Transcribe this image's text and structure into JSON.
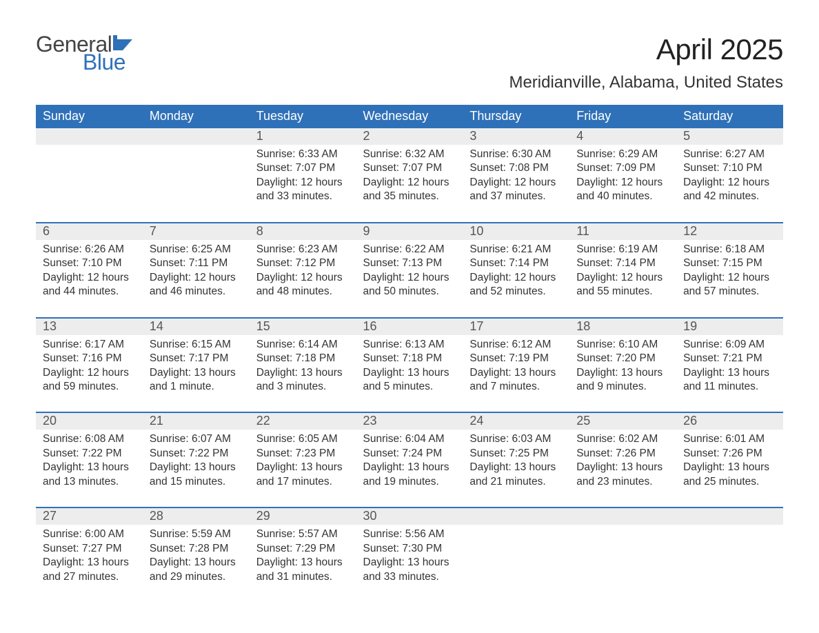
{
  "logo": {
    "text1": "General",
    "text2": "Blue",
    "flag_color": "#2f71b8"
  },
  "title": "April 2025",
  "location": "Meridianville, Alabama, United States",
  "colors": {
    "header_bg": "#2f71b8",
    "header_text": "#ffffff",
    "daynum_bg": "#ededed",
    "row_divider": "#2f71b8",
    "body_text": "#333333"
  },
  "fonts": {
    "title_size_pt": 32,
    "location_size_pt": 18,
    "header_size_pt": 14,
    "daynum_size_pt": 14,
    "body_size_pt": 12
  },
  "day_headers": [
    "Sunday",
    "Monday",
    "Tuesday",
    "Wednesday",
    "Thursday",
    "Friday",
    "Saturday"
  ],
  "weeks": [
    [
      null,
      null,
      {
        "n": "1",
        "sunrise": "6:33 AM",
        "sunset": "7:07 PM",
        "daylight": "12 hours and 33 minutes."
      },
      {
        "n": "2",
        "sunrise": "6:32 AM",
        "sunset": "7:07 PM",
        "daylight": "12 hours and 35 minutes."
      },
      {
        "n": "3",
        "sunrise": "6:30 AM",
        "sunset": "7:08 PM",
        "daylight": "12 hours and 37 minutes."
      },
      {
        "n": "4",
        "sunrise": "6:29 AM",
        "sunset": "7:09 PM",
        "daylight": "12 hours and 40 minutes."
      },
      {
        "n": "5",
        "sunrise": "6:27 AM",
        "sunset": "7:10 PM",
        "daylight": "12 hours and 42 minutes."
      }
    ],
    [
      {
        "n": "6",
        "sunrise": "6:26 AM",
        "sunset": "7:10 PM",
        "daylight": "12 hours and 44 minutes."
      },
      {
        "n": "7",
        "sunrise": "6:25 AM",
        "sunset": "7:11 PM",
        "daylight": "12 hours and 46 minutes."
      },
      {
        "n": "8",
        "sunrise": "6:23 AM",
        "sunset": "7:12 PM",
        "daylight": "12 hours and 48 minutes."
      },
      {
        "n": "9",
        "sunrise": "6:22 AM",
        "sunset": "7:13 PM",
        "daylight": "12 hours and 50 minutes."
      },
      {
        "n": "10",
        "sunrise": "6:21 AM",
        "sunset": "7:14 PM",
        "daylight": "12 hours and 52 minutes."
      },
      {
        "n": "11",
        "sunrise": "6:19 AM",
        "sunset": "7:14 PM",
        "daylight": "12 hours and 55 minutes."
      },
      {
        "n": "12",
        "sunrise": "6:18 AM",
        "sunset": "7:15 PM",
        "daylight": "12 hours and 57 minutes."
      }
    ],
    [
      {
        "n": "13",
        "sunrise": "6:17 AM",
        "sunset": "7:16 PM",
        "daylight": "12 hours and 59 minutes."
      },
      {
        "n": "14",
        "sunrise": "6:15 AM",
        "sunset": "7:17 PM",
        "daylight": "13 hours and 1 minute."
      },
      {
        "n": "15",
        "sunrise": "6:14 AM",
        "sunset": "7:18 PM",
        "daylight": "13 hours and 3 minutes."
      },
      {
        "n": "16",
        "sunrise": "6:13 AM",
        "sunset": "7:18 PM",
        "daylight": "13 hours and 5 minutes."
      },
      {
        "n": "17",
        "sunrise": "6:12 AM",
        "sunset": "7:19 PM",
        "daylight": "13 hours and 7 minutes."
      },
      {
        "n": "18",
        "sunrise": "6:10 AM",
        "sunset": "7:20 PM",
        "daylight": "13 hours and 9 minutes."
      },
      {
        "n": "19",
        "sunrise": "6:09 AM",
        "sunset": "7:21 PM",
        "daylight": "13 hours and 11 minutes."
      }
    ],
    [
      {
        "n": "20",
        "sunrise": "6:08 AM",
        "sunset": "7:22 PM",
        "daylight": "13 hours and 13 minutes."
      },
      {
        "n": "21",
        "sunrise": "6:07 AM",
        "sunset": "7:22 PM",
        "daylight": "13 hours and 15 minutes."
      },
      {
        "n": "22",
        "sunrise": "6:05 AM",
        "sunset": "7:23 PM",
        "daylight": "13 hours and 17 minutes."
      },
      {
        "n": "23",
        "sunrise": "6:04 AM",
        "sunset": "7:24 PM",
        "daylight": "13 hours and 19 minutes."
      },
      {
        "n": "24",
        "sunrise": "6:03 AM",
        "sunset": "7:25 PM",
        "daylight": "13 hours and 21 minutes."
      },
      {
        "n": "25",
        "sunrise": "6:02 AM",
        "sunset": "7:26 PM",
        "daylight": "13 hours and 23 minutes."
      },
      {
        "n": "26",
        "sunrise": "6:01 AM",
        "sunset": "7:26 PM",
        "daylight": "13 hours and 25 minutes."
      }
    ],
    [
      {
        "n": "27",
        "sunrise": "6:00 AM",
        "sunset": "7:27 PM",
        "daylight": "13 hours and 27 minutes."
      },
      {
        "n": "28",
        "sunrise": "5:59 AM",
        "sunset": "7:28 PM",
        "daylight": "13 hours and 29 minutes."
      },
      {
        "n": "29",
        "sunrise": "5:57 AM",
        "sunset": "7:29 PM",
        "daylight": "13 hours and 31 minutes."
      },
      {
        "n": "30",
        "sunrise": "5:56 AM",
        "sunset": "7:30 PM",
        "daylight": "13 hours and 33 minutes."
      },
      null,
      null,
      null
    ]
  ],
  "labels": {
    "sunrise": "Sunrise: ",
    "sunset": "Sunset: ",
    "daylight": "Daylight: "
  }
}
